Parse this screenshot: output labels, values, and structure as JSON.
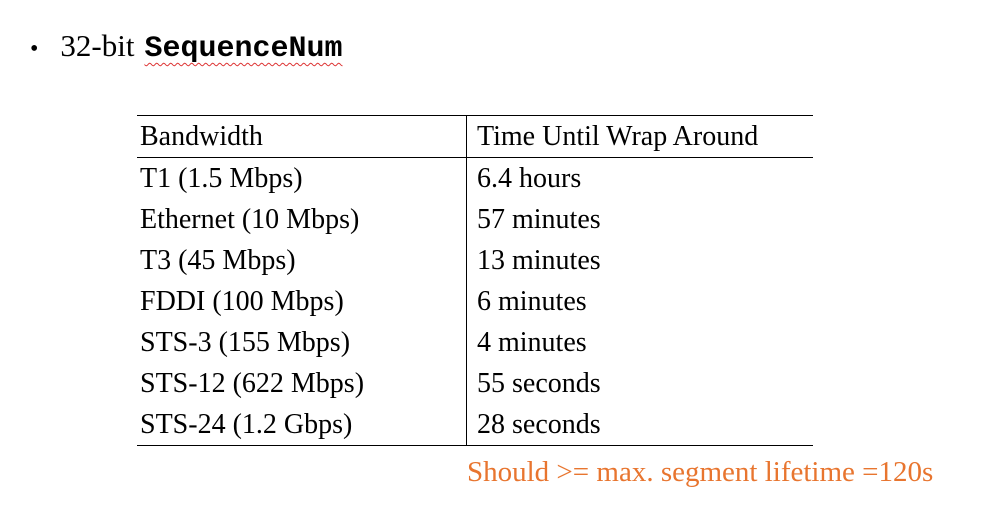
{
  "bullet": {
    "dot": "•",
    "prefix": "32-bit",
    "code": "SequenceNum"
  },
  "table": {
    "headers": [
      "Bandwidth",
      "Time Until Wrap Around"
    ],
    "rows": [
      [
        "T1 (1.5 Mbps)",
        "6.4 hours"
      ],
      [
        "Ethernet (10 Mbps)",
        "57 minutes"
      ],
      [
        "T3 (45 Mbps)",
        "13 minutes"
      ],
      [
        "FDDI (100 Mbps)",
        "6 minutes"
      ],
      [
        "STS-3 (155 Mbps)",
        "4 minutes"
      ],
      [
        "STS-12 (622 Mbps)",
        "55 seconds"
      ],
      [
        "STS-24 (1.2 Gbps)",
        "28 seconds"
      ]
    ]
  },
  "note": "Should >= max. segment lifetime =120s",
  "colors": {
    "note": "#e8752f",
    "spellcheck_underline": "#d33"
  }
}
